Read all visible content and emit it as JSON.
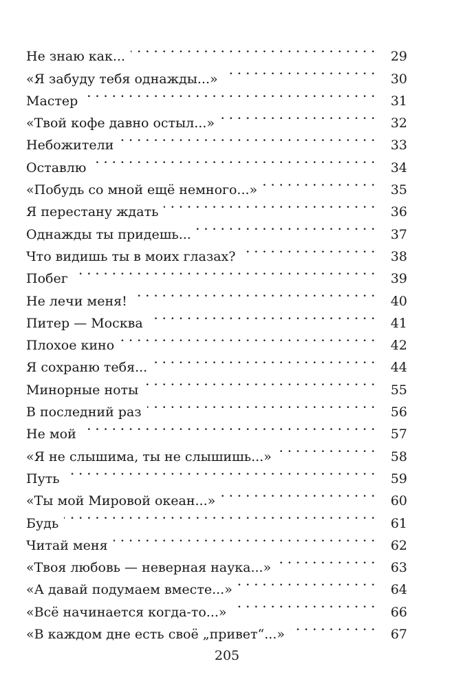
{
  "toc": {
    "entries": [
      {
        "title": "Не знаю как...",
        "page": "29"
      },
      {
        "title": "«Я забуду тебя однажды...»",
        "page": "30"
      },
      {
        "title": "Мастер",
        "page": "31"
      },
      {
        "title": "«Твой кофе давно остыл...»",
        "page": "32"
      },
      {
        "title": "Небожители",
        "page": "33"
      },
      {
        "title": "Оставлю",
        "page": "34"
      },
      {
        "title": "«Побудь со мной ещё немного...»",
        "page": "35"
      },
      {
        "title": "Я перестану ждать",
        "page": "36"
      },
      {
        "title": "Однажды ты придешь...",
        "page": "37"
      },
      {
        "title": "Что видишь ты в моих глазах?",
        "page": "38"
      },
      {
        "title": "Побег",
        "page": "39"
      },
      {
        "title": "Не лечи меня!",
        "page": "40"
      },
      {
        "title": "Питер — Москва",
        "page": "41"
      },
      {
        "title": "Плохое кино",
        "page": "42"
      },
      {
        "title": "Я сохраню тебя...",
        "page": "44"
      },
      {
        "title": "Минорные ноты",
        "page": "55"
      },
      {
        "title": "В последний раз",
        "page": "56"
      },
      {
        "title": "Не мой",
        "page": "57"
      },
      {
        "title": "«Я не слышима, ты не слышишь...»",
        "page": "58"
      },
      {
        "title": "Путь",
        "page": "59"
      },
      {
        "title": "«Ты мой Мировой океан...»",
        "page": "60"
      },
      {
        "title": "Будь",
        "page": "61"
      },
      {
        "title": "Читай меня",
        "page": "62"
      },
      {
        "title": "«Твоя любовь — неверная наука...»",
        "page": "63"
      },
      {
        "title": "«А давай подумаем вместе...»",
        "page": "64"
      },
      {
        "title": "«Всё начинается когда-то...»",
        "page": "66"
      },
      {
        "title": "«В каждом дне есть своё „привет“...»",
        "page": "67"
      }
    ]
  },
  "folio": "205"
}
